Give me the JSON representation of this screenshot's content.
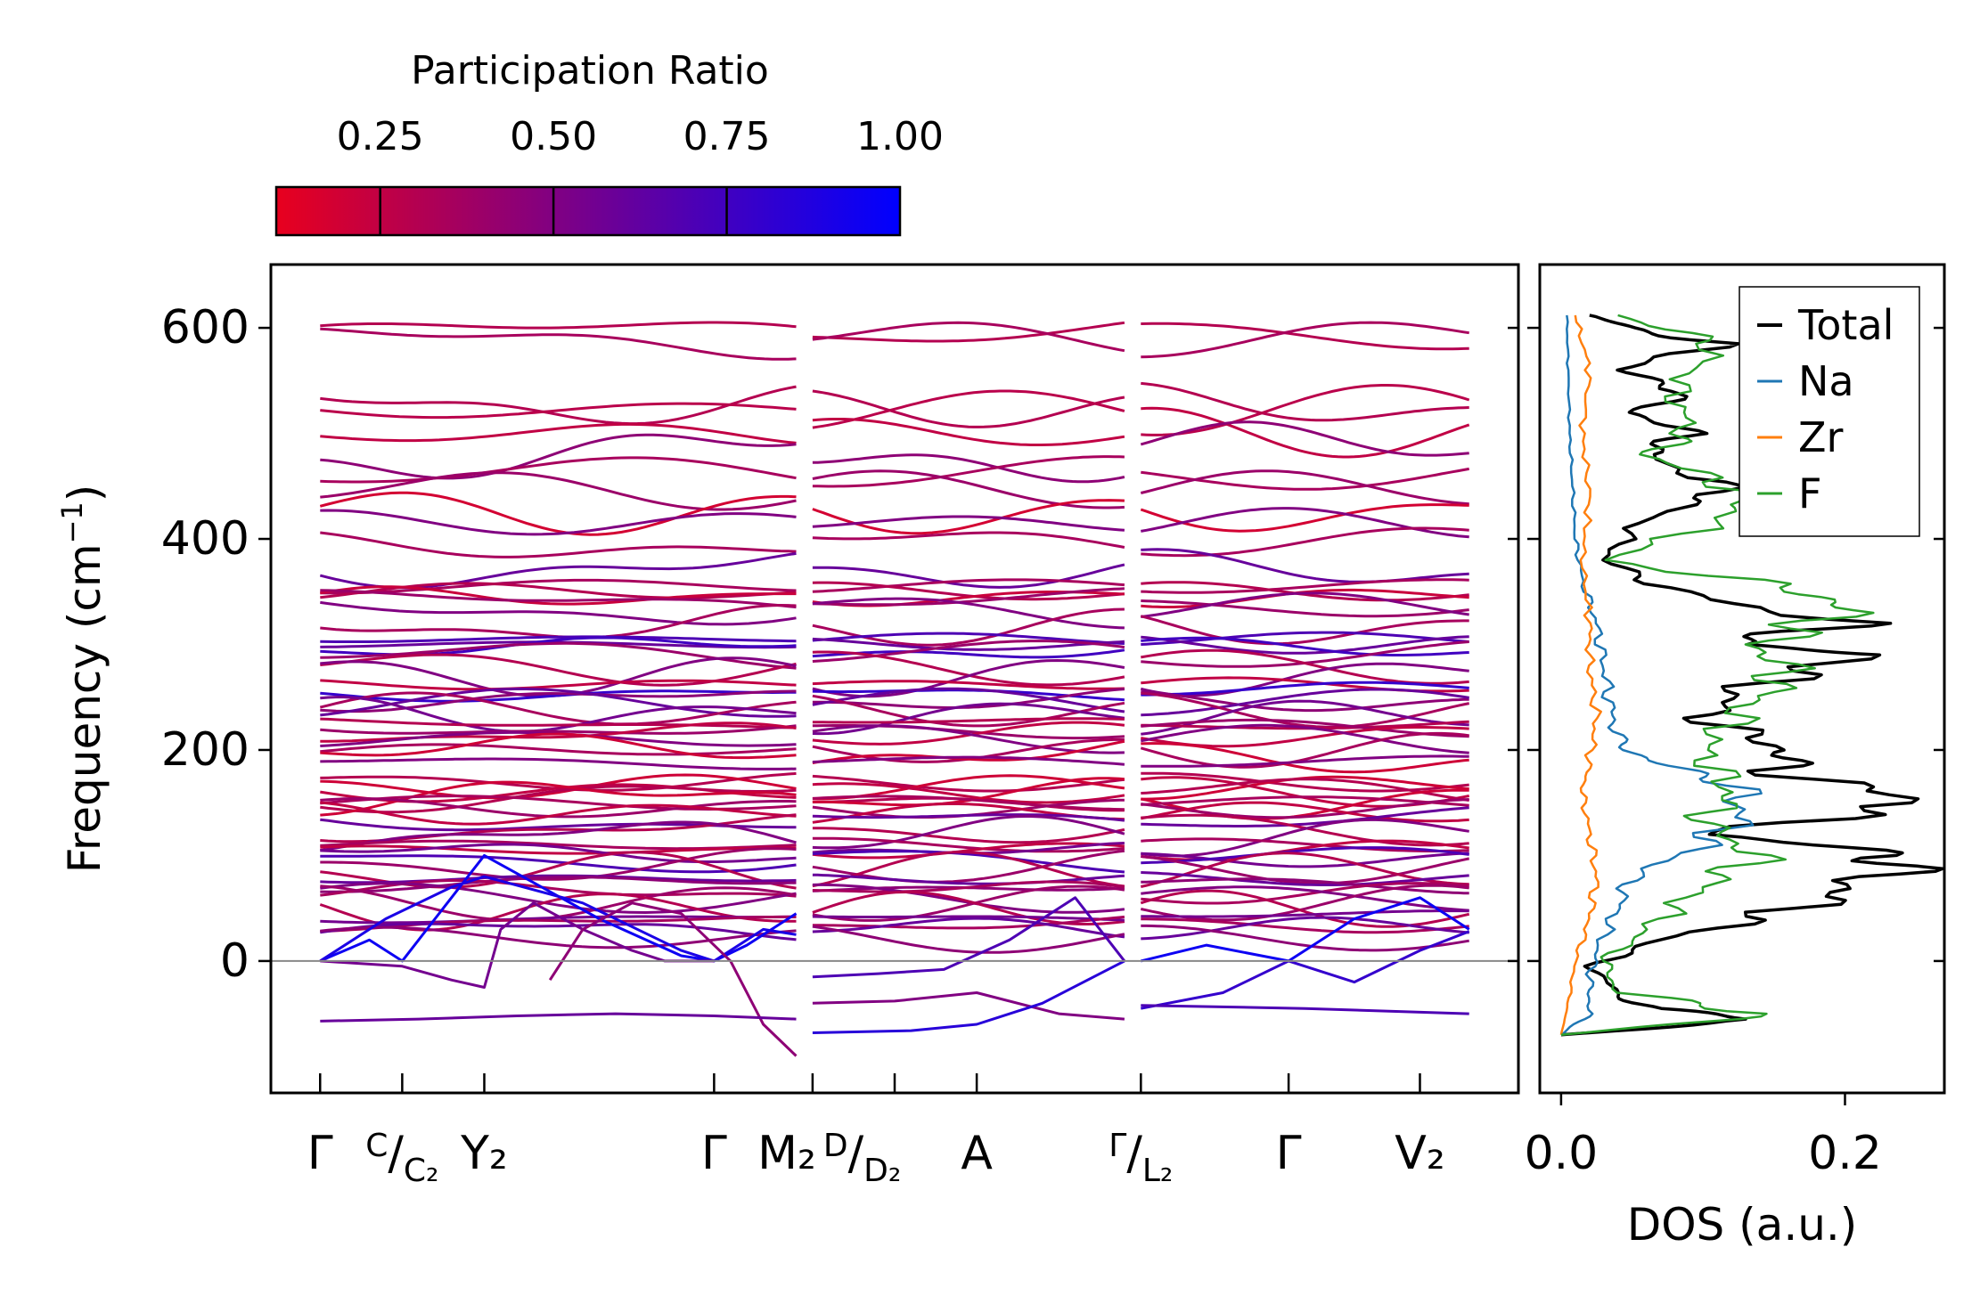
{
  "colorbar": {
    "title": "Participation Ratio",
    "min": 0.1,
    "max": 1.0,
    "ticks": [
      0.25,
      0.5,
      0.75,
      1.0
    ],
    "tick_labels": [
      "0.25",
      "0.50",
      "0.75",
      "1.00"
    ],
    "color_low": "#e8001e",
    "color_high": "#0000ff"
  },
  "chart_data": [
    {
      "type": "line",
      "title": "",
      "ylabel": "Frequency (cm⁻¹)",
      "ylabel_parts": {
        "pre": "Frequency (cm",
        "sup": "−1",
        "post": ")"
      },
      "ylim": [
        -125,
        660
      ],
      "yticks": [
        0,
        200,
        400,
        600
      ],
      "ytick_labels": [
        "0",
        "200",
        "400",
        "600"
      ],
      "k_path": {
        "range": [
          -0.3,
          7.3
        ],
        "segments": [
          [
            0,
            2.9
          ],
          [
            3.0,
            4.9
          ],
          [
            5.0,
            7.0
          ]
        ],
        "ticks": [
          0,
          0.5,
          1.0,
          2.4,
          3.0,
          3.5,
          4.0,
          5.0,
          5.9,
          6.7
        ],
        "labels": [
          {
            "pos": 0,
            "main": "Γ"
          },
          {
            "pos": 0.5,
            "main": "",
            "frac_top": "C",
            "frac_bottom": "C₂"
          },
          {
            "pos": 1.0,
            "main": "Y₂"
          },
          {
            "pos": 2.4,
            "main": "Γ"
          },
          {
            "pos": 3.0,
            "main": "M₂",
            "frac_top": "D",
            "frac_bottom": "D₂"
          },
          {
            "pos": 4.0,
            "main": "A"
          },
          {
            "pos": 5.0,
            "main": "",
            "frac_top": "Γ",
            "frac_bottom": "L₂"
          },
          {
            "pos": 5.9,
            "main": "Γ"
          },
          {
            "pos": 6.7,
            "main": "V₂"
          }
        ]
      },
      "zero_line": 0,
      "optical_bands": {
        "frequencies": [
          596,
          588,
          527,
          522,
          500,
          482,
          462,
          446,
          425,
          415,
          396,
          372,
          355,
          350,
          345,
          340,
          332,
          318,
          305,
          300,
          296,
          290,
          278,
          270,
          262,
          255,
          248,
          244,
          238,
          232,
          225,
          220,
          215,
          210,
          200,
          196,
          188,
          170,
          165,
          160,
          157,
          154,
          150,
          145,
          140,
          133,
          126,
          118,
          110,
          105,
          101,
          96,
          90,
          84,
          78,
          72,
          65,
          60,
          55,
          48,
          42,
          36,
          30,
          22
        ],
        "ratios": [
          0.3,
          0.35,
          0.3,
          0.28,
          0.25,
          0.45,
          0.35,
          0.4,
          0.18,
          0.5,
          0.35,
          0.6,
          0.35,
          0.3,
          0.22,
          0.4,
          0.5,
          0.35,
          0.7,
          0.6,
          0.75,
          0.4,
          0.3,
          0.5,
          0.25,
          0.8,
          0.45,
          0.6,
          0.35,
          0.55,
          0.3,
          0.4,
          0.25,
          0.5,
          0.35,
          0.2,
          0.5,
          0.3,
          0.2,
          0.25,
          0.3,
          0.2,
          0.35,
          0.4,
          0.25,
          0.6,
          0.3,
          0.5,
          0.35,
          0.25,
          0.55,
          0.7,
          0.4,
          0.3,
          0.6,
          0.45,
          0.35,
          0.5,
          0.4,
          0.3,
          0.55,
          0.35,
          0.6,
          0.45
        ]
      },
      "acoustic_bands": [
        {
          "ratio": 0.95,
          "x": [
            0,
            0.3,
            0.5,
            0.7,
            1.0,
            1.7,
            2.2,
            2.4,
            2.6,
            2.9
          ],
          "y": [
            0,
            20,
            0,
            40,
            100,
            40,
            5,
            0,
            15,
            45
          ]
        },
        {
          "ratio": 0.9,
          "x": [
            0,
            0.4,
            0.8,
            1.0,
            1.6,
            2.2,
            2.4,
            2.7,
            2.9
          ],
          "y": [
            0,
            40,
            70,
            80,
            55,
            10,
            0,
            30,
            25
          ]
        },
        {
          "ratio": 0.55,
          "x": [
            0,
            0.5,
            0.8,
            1.0,
            1.1,
            1.3,
            1.6,
            1.9,
            2.1,
            2.4
          ],
          "y": [
            0,
            -5,
            -18,
            -25,
            30,
            55,
            30,
            10,
            0,
            0
          ]
        },
        {
          "ratio": 0.45,
          "x": [
            1.4,
            1.6,
            1.9,
            2.2,
            2.5,
            2.7,
            2.9
          ],
          "y": [
            -18,
            30,
            55,
            45,
            0,
            -60,
            -90
          ]
        },
        {
          "ratio": 0.6,
          "x": [
            0,
            0.6,
            1.2,
            1.8,
            2.4,
            2.9
          ],
          "y": [
            -57,
            -55,
            -52,
            -50,
            -52,
            -55
          ]
        },
        {
          "ratio": 0.7,
          "x": [
            3.0,
            3.4,
            3.8,
            4.2,
            4.6,
            4.9
          ],
          "y": [
            -15,
            -12,
            -8,
            20,
            60,
            0
          ]
        },
        {
          "ratio": 0.5,
          "x": [
            3.0,
            3.5,
            4.0,
            4.5,
            4.9
          ],
          "y": [
            -40,
            -38,
            -30,
            -50,
            -55
          ]
        },
        {
          "ratio": 0.85,
          "x": [
            3.0,
            3.6,
            4.0,
            4.4,
            4.9
          ],
          "y": [
            -68,
            -66,
            -60,
            -40,
            0
          ]
        },
        {
          "ratio": 0.95,
          "x": [
            5.0,
            5.4,
            5.9,
            6.3,
            6.7,
            7.0
          ],
          "y": [
            0,
            15,
            0,
            40,
            60,
            30
          ]
        },
        {
          "ratio": 0.8,
          "x": [
            5.0,
            5.5,
            5.9,
            6.3,
            6.7,
            7.0
          ],
          "y": [
            -45,
            -30,
            0,
            -20,
            10,
            28
          ]
        },
        {
          "ratio": 0.7,
          "x": [
            5.0,
            6.0,
            7.0
          ],
          "y": [
            -42,
            -45,
            -50
          ]
        }
      ]
    },
    {
      "type": "line",
      "xlabel": "DOS (a.u.)",
      "xlim": [
        -0.015,
        0.27
      ],
      "xticks": [
        0.0,
        0.2
      ],
      "xtick_labels": [
        "0.0",
        "0.2"
      ],
      "ylim": [
        -125,
        660
      ],
      "legend_position": "upper-right",
      "series": [
        {
          "name": "Total",
          "color": "#000000",
          "y": [
            -70,
            -55,
            -45,
            -30,
            -5,
            20,
            50,
            80,
            100,
            120,
            150,
            180,
            200,
            230,
            260,
            290,
            300,
            320,
            350,
            380,
            420,
            445,
            480,
            500,
            520,
            540,
            560,
            585,
            600,
            612
          ],
          "x": [
            0.0,
            0.15,
            0.06,
            0.04,
            0.02,
            0.07,
            0.17,
            0.22,
            0.25,
            0.1,
            0.26,
            0.15,
            0.16,
            0.1,
            0.13,
            0.22,
            0.12,
            0.2,
            0.08,
            0.03,
            0.06,
            0.12,
            0.06,
            0.09,
            0.05,
            0.09,
            0.04,
            0.11,
            0.05,
            0.02
          ]
        },
        {
          "name": "Na",
          "color": "#1f77b4",
          "y": [
            -70,
            -50,
            -20,
            10,
            50,
            80,
            110,
            140,
            170,
            190,
            210,
            240,
            280,
            320,
            360,
            400,
            450,
            500,
            560,
            612
          ],
          "x": [
            0.0,
            0.02,
            0.02,
            0.025,
            0.04,
            0.05,
            0.1,
            0.13,
            0.12,
            0.06,
            0.04,
            0.035,
            0.03,
            0.025,
            0.015,
            0.01,
            0.008,
            0.006,
            0.005,
            0.004
          ]
        },
        {
          "name": "Zr",
          "color": "#ff7f0e",
          "y": [
            -70,
            -40,
            0,
            40,
            80,
            120,
            160,
            190,
            230,
            280,
            320,
            380,
            440,
            500,
            560,
            612
          ],
          "x": [
            0.0,
            0.005,
            0.01,
            0.02,
            0.025,
            0.02,
            0.015,
            0.02,
            0.025,
            0.02,
            0.02,
            0.015,
            0.02,
            0.015,
            0.02,
            0.01
          ]
        },
        {
          "name": "F",
          "color": "#2ca02c",
          "y": [
            -70,
            -50,
            -30,
            0,
            30,
            70,
            100,
            130,
            160,
            200,
            240,
            270,
            300,
            330,
            350,
            380,
            420,
            445,
            480,
            500,
            540,
            585,
            612
          ],
          "x": [
            0.0,
            0.15,
            0.04,
            0.03,
            0.06,
            0.1,
            0.14,
            0.1,
            0.12,
            0.1,
            0.13,
            0.16,
            0.14,
            0.2,
            0.18,
            0.03,
            0.12,
            0.13,
            0.06,
            0.09,
            0.08,
            0.11,
            0.04
          ]
        }
      ]
    }
  ]
}
